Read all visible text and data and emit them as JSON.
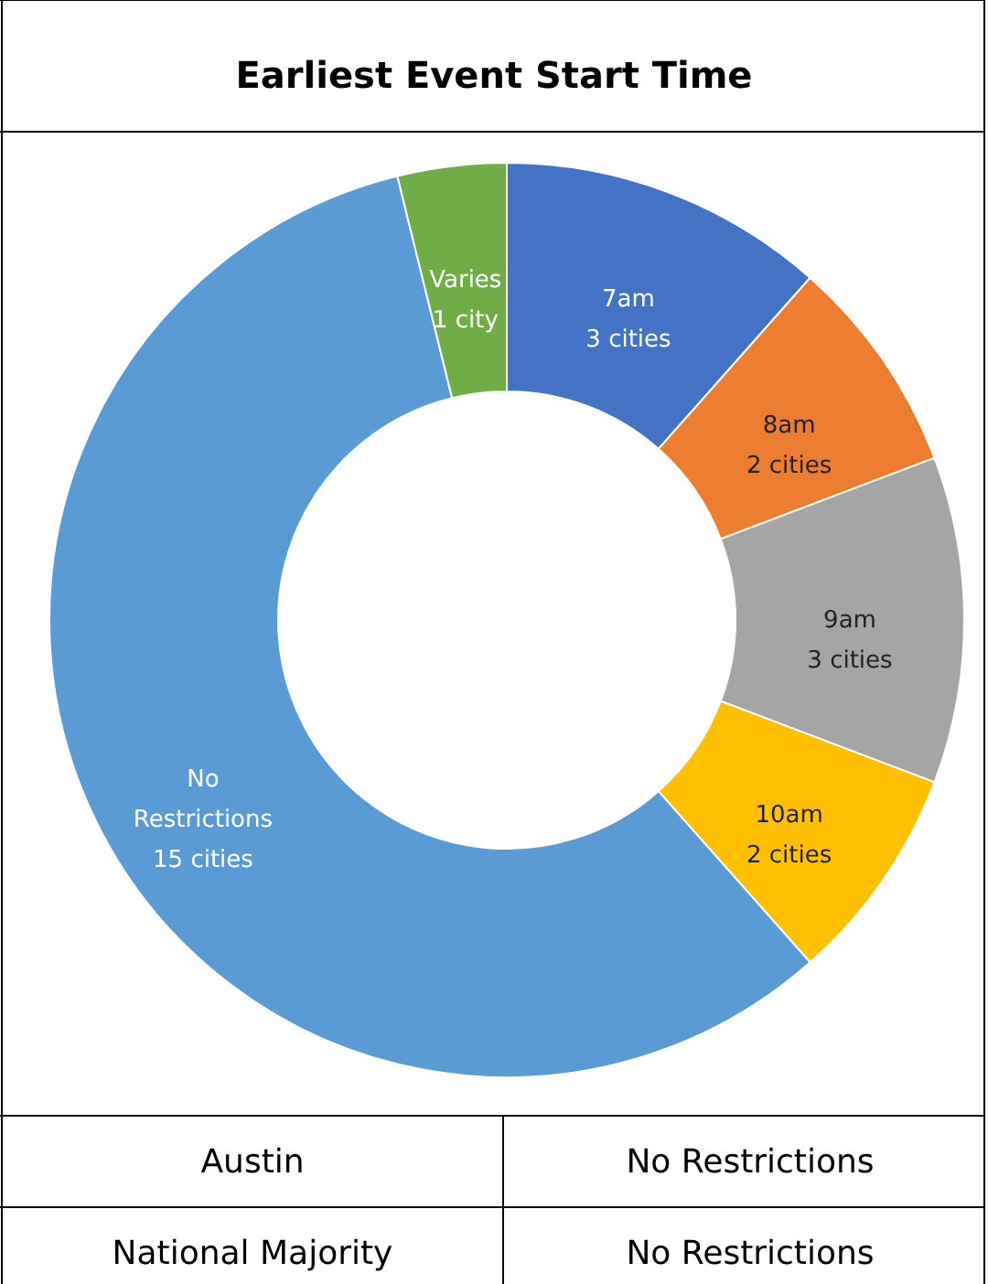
{
  "chart_data": {
    "type": "donut",
    "title": "Earliest Event Start Time",
    "categories": [
      "7am",
      "8am",
      "9am",
      "10am",
      "No Restrictions",
      "Varies"
    ],
    "values": [
      3,
      2,
      3,
      2,
      15,
      1
    ],
    "value_labels": [
      "3 cities",
      "2 cities",
      "3 cities",
      "2 cities",
      "15 cities",
      "1 city"
    ],
    "colors": [
      "#4472c4",
      "#ed7d31",
      "#a5a5a5",
      "#ffc000",
      "#5b9bd5",
      "#70ad47"
    ],
    "annotations": [
      "Austin",
      "No Restrictions",
      "National Majority",
      "No Restrictions"
    ]
  }
}
